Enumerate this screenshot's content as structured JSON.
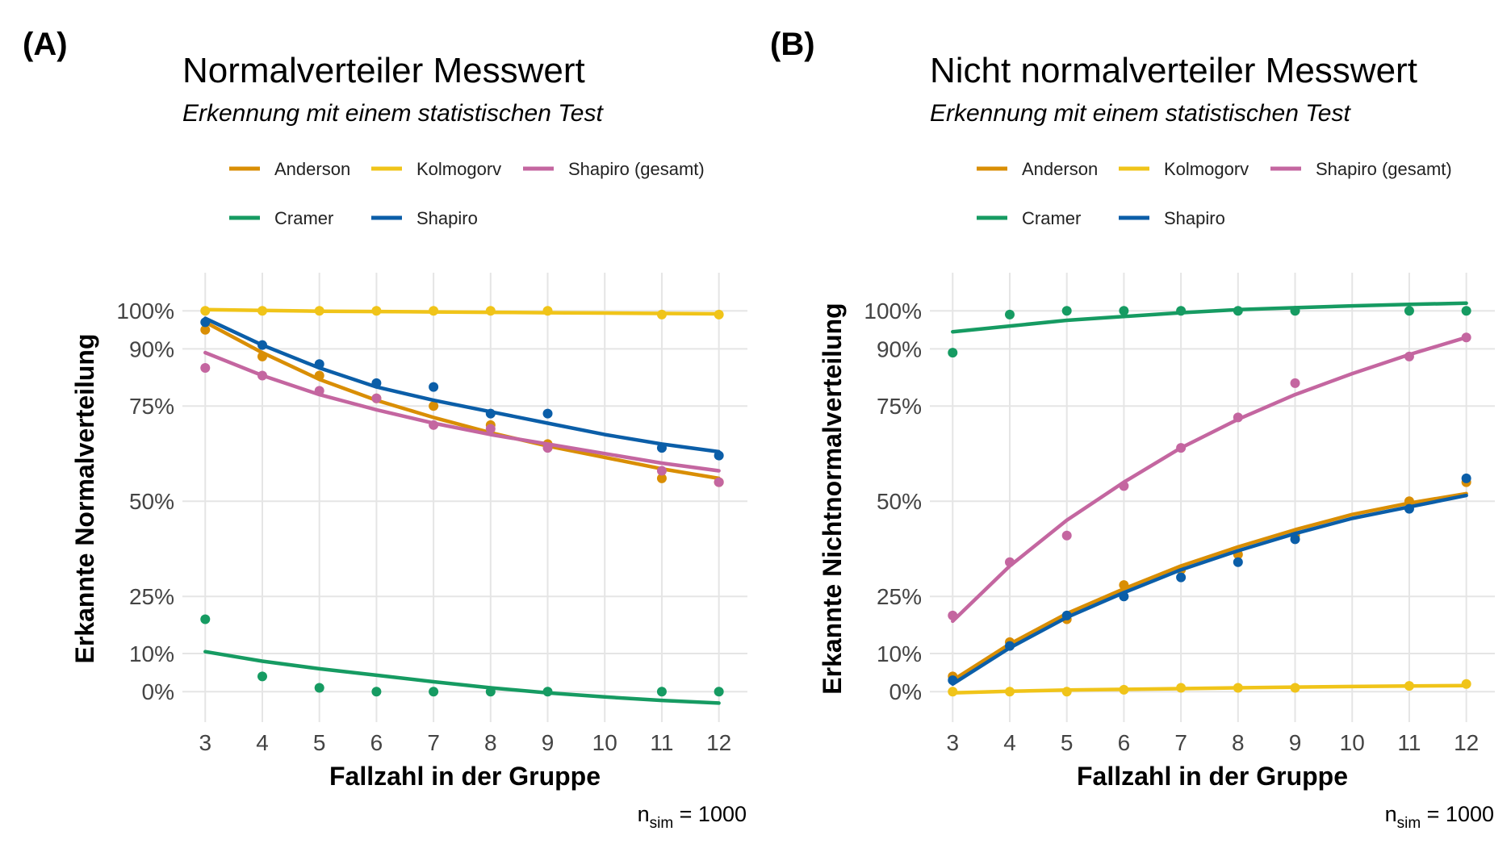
{
  "colors": {
    "Anderson": "#D98E04",
    "Kolmogorv": "#F0C419",
    "Shapiro (gesamt)": "#C466A0",
    "Cramer": "#169B62",
    "Shapiro": "#0B5EA8"
  },
  "legend_labels": {
    "anderson": "Anderson",
    "kolmogorv": "Kolmogorv",
    "shapiro_gesamt": "Shapiro (gesamt)",
    "cramer": "Cramer",
    "shapiro": "Shapiro"
  },
  "caption": {
    "n": "n",
    "sub": "sim",
    "value": " = 1000"
  },
  "chart_data": [
    {
      "type": "scatter",
      "tag": "(A)",
      "title": "Normalverteiler Messwert",
      "subtitle": "Erkennung mit einem statistischen Test",
      "xlabel": "Fallzahl in der Gruppe",
      "ylabel": "Erkannte Normalverteilung",
      "x": [
        3,
        4,
        5,
        6,
        7,
        8,
        9,
        10,
        11,
        12
      ],
      "x_ticks": [
        "3",
        "4",
        "5",
        "6",
        "7",
        "8",
        "9",
        "10",
        "11",
        "12"
      ],
      "y_ticks": [
        "0%",
        "10%",
        "25%",
        "50%",
        "75%",
        "90%",
        "100%"
      ],
      "y_tick_values": [
        0,
        10,
        25,
        50,
        75,
        90,
        100
      ],
      "xlim": [
        2.6,
        12.5
      ],
      "ylim": [
        -8,
        110
      ],
      "grid": true,
      "legend_position": "top",
      "series": [
        {
          "name": "Anderson",
          "points": [
            [
              3,
              95
            ],
            [
              4,
              88
            ],
            [
              5,
              83
            ],
            [
              6,
              77
            ],
            [
              7,
              75
            ],
            [
              8,
              70
            ],
            [
              9,
              65
            ],
            [
              11,
              56
            ],
            [
              12,
              55
            ]
          ],
          "fit": [
            [
              3,
              97
            ],
            [
              4,
              89
            ],
            [
              5,
              82
            ],
            [
              6,
              76.5
            ],
            [
              7,
              72
            ],
            [
              8,
              68
            ],
            [
              9,
              64.5
            ],
            [
              10,
              61.5
            ],
            [
              11,
              58.5
            ],
            [
              12,
              56
            ]
          ]
        },
        {
          "name": "Kolmogorv",
          "points": [
            [
              3,
              100
            ],
            [
              4,
              100
            ],
            [
              5,
              100
            ],
            [
              6,
              100
            ],
            [
              7,
              100
            ],
            [
              8,
              100
            ],
            [
              9,
              100
            ],
            [
              11,
              99
            ],
            [
              12,
              99
            ]
          ],
          "fit": [
            [
              3,
              100.3
            ],
            [
              4,
              100.1
            ],
            [
              5,
              99.9
            ],
            [
              6,
              99.8
            ],
            [
              7,
              99.7
            ],
            [
              8,
              99.6
            ],
            [
              9,
              99.5
            ],
            [
              10,
              99.4
            ],
            [
              11,
              99.3
            ],
            [
              12,
              99.2
            ]
          ]
        },
        {
          "name": "Shapiro (gesamt)",
          "points": [
            [
              3,
              85
            ],
            [
              4,
              83
            ],
            [
              5,
              79
            ],
            [
              6,
              77
            ],
            [
              7,
              70
            ],
            [
              8,
              69
            ],
            [
              9,
              64
            ],
            [
              11,
              58
            ],
            [
              12,
              55
            ]
          ],
          "fit": [
            [
              3,
              89
            ],
            [
              4,
              83
            ],
            [
              5,
              78
            ],
            [
              6,
              74
            ],
            [
              7,
              70.5
            ],
            [
              8,
              67.5
            ],
            [
              9,
              65
            ],
            [
              10,
              62.5
            ],
            [
              11,
              60
            ],
            [
              12,
              58
            ]
          ]
        },
        {
          "name": "Cramer",
          "points": [
            [
              3,
              19
            ],
            [
              4,
              4
            ],
            [
              5,
              1
            ],
            [
              6,
              0
            ],
            [
              7,
              0
            ],
            [
              8,
              0
            ],
            [
              9,
              0
            ],
            [
              11,
              0
            ],
            [
              12,
              0
            ]
          ],
          "fit": [
            [
              3,
              10.5
            ],
            [
              4,
              8
            ],
            [
              5,
              6
            ],
            [
              6,
              4.3
            ],
            [
              7,
              2.6
            ],
            [
              8,
              1
            ],
            [
              9,
              -0.3
            ],
            [
              10,
              -1.4
            ],
            [
              11,
              -2.3
            ],
            [
              12,
              -3
            ]
          ]
        },
        {
          "name": "Shapiro",
          "points": [
            [
              3,
              97
            ],
            [
              4,
              91
            ],
            [
              5,
              86
            ],
            [
              6,
              81
            ],
            [
              7,
              80
            ],
            [
              8,
              73
            ],
            [
              9,
              73
            ],
            [
              11,
              64
            ],
            [
              12,
              62
            ]
          ],
          "fit": [
            [
              3,
              98
            ],
            [
              4,
              91
            ],
            [
              5,
              85
            ],
            [
              6,
              80
            ],
            [
              7,
              76.5
            ],
            [
              8,
              73.5
            ],
            [
              9,
              70.5
            ],
            [
              10,
              67.5
            ],
            [
              11,
              65
            ],
            [
              12,
              63
            ]
          ]
        }
      ]
    },
    {
      "type": "scatter",
      "tag": "(B)",
      "title": "Nicht normalverteiler Messwert",
      "subtitle": "Erkennung mit einem statistischen Test",
      "xlabel": "Fallzahl in der Gruppe",
      "ylabel": "Erkannte Nichtnormalverteilung",
      "x": [
        3,
        4,
        5,
        6,
        7,
        8,
        9,
        10,
        11,
        12
      ],
      "x_ticks": [
        "3",
        "4",
        "5",
        "6",
        "7",
        "8",
        "9",
        "10",
        "11",
        "12"
      ],
      "y_ticks": [
        "0%",
        "10%",
        "25%",
        "50%",
        "75%",
        "90%",
        "100%"
      ],
      "y_tick_values": [
        0,
        10,
        25,
        50,
        75,
        90,
        100
      ],
      "xlim": [
        2.6,
        12.5
      ],
      "ylim": [
        -8,
        110
      ],
      "grid": true,
      "legend_position": "top",
      "series": [
        {
          "name": "Anderson",
          "points": [
            [
              3,
              4
            ],
            [
              4,
              13
            ],
            [
              5,
              19
            ],
            [
              6,
              28
            ],
            [
              7,
              32
            ],
            [
              8,
              36
            ],
            [
              9,
              41
            ],
            [
              11,
              50
            ],
            [
              12,
              55
            ]
          ],
          "fit": [
            [
              3,
              3
            ],
            [
              4,
              12.5
            ],
            [
              5,
              20.5
            ],
            [
              6,
              27
            ],
            [
              7,
              33
            ],
            [
              8,
              38
            ],
            [
              9,
              42.5
            ],
            [
              10,
              46.5
            ],
            [
              11,
              49.5
            ],
            [
              12,
              52
            ]
          ]
        },
        {
          "name": "Kolmogorv",
          "points": [
            [
              3,
              0
            ],
            [
              4,
              0
            ],
            [
              5,
              0
            ],
            [
              6,
              0.5
            ],
            [
              7,
              1
            ],
            [
              8,
              1
            ],
            [
              9,
              1
            ],
            [
              11,
              1.5
            ],
            [
              12,
              2
            ]
          ],
          "fit": [
            [
              3,
              -0.3
            ],
            [
              4,
              0.1
            ],
            [
              5,
              0.4
            ],
            [
              6,
              0.6
            ],
            [
              7,
              0.8
            ],
            [
              8,
              1
            ],
            [
              9,
              1.2
            ],
            [
              10,
              1.35
            ],
            [
              11,
              1.5
            ],
            [
              12,
              1.6
            ]
          ]
        },
        {
          "name": "Shapiro (gesamt)",
          "points": [
            [
              3,
              20
            ],
            [
              4,
              34
            ],
            [
              5,
              41
            ],
            [
              6,
              54
            ],
            [
              7,
              64
            ],
            [
              8,
              72
            ],
            [
              9,
              81
            ],
            [
              11,
              88
            ],
            [
              12,
              93
            ]
          ],
          "fit": [
            [
              3,
              18.5
            ],
            [
              4,
              33
            ],
            [
              5,
              45
            ],
            [
              6,
              55
            ],
            [
              7,
              64
            ],
            [
              8,
              71.5
            ],
            [
              9,
              78
            ],
            [
              10,
              83.5
            ],
            [
              11,
              88.5
            ],
            [
              12,
              93
            ]
          ]
        },
        {
          "name": "Cramer",
          "points": [
            [
              3,
              89
            ],
            [
              4,
              99
            ],
            [
              5,
              100
            ],
            [
              6,
              100
            ],
            [
              7,
              100
            ],
            [
              8,
              100
            ],
            [
              9,
              100
            ],
            [
              11,
              100
            ],
            [
              12,
              100
            ]
          ],
          "fit": [
            [
              3,
              94.5
            ],
            [
              4,
              96
            ],
            [
              5,
              97.5
            ],
            [
              6,
              98.5
            ],
            [
              7,
              99.5
            ],
            [
              8,
              100.3
            ],
            [
              9,
              100.8
            ],
            [
              10,
              101.3
            ],
            [
              11,
              101.7
            ],
            [
              12,
              102
            ]
          ]
        },
        {
          "name": "Shapiro",
          "points": [
            [
              3,
              3
            ],
            [
              4,
              12
            ],
            [
              5,
              20
            ],
            [
              6,
              25
            ],
            [
              7,
              30
            ],
            [
              8,
              34
            ],
            [
              9,
              40
            ],
            [
              11,
              48
            ],
            [
              12,
              56
            ]
          ],
          "fit": [
            [
              3,
              2
            ],
            [
              4,
              11.5
            ],
            [
              5,
              19.5
            ],
            [
              6,
              26
            ],
            [
              7,
              32
            ],
            [
              8,
              37
            ],
            [
              9,
              41.5
            ],
            [
              10,
              45.5
            ],
            [
              11,
              48.5
            ],
            [
              12,
              51.5
            ]
          ]
        }
      ]
    }
  ]
}
